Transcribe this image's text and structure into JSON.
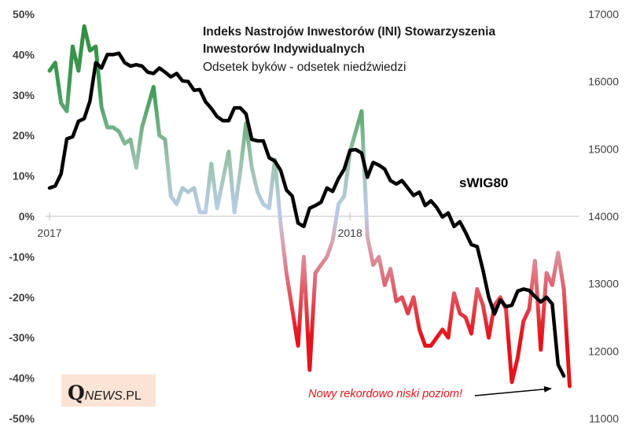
{
  "chart_data": {
    "type": "line",
    "title_line1": "Indeks Nastrojów Inwestorów (INI) Stowarzyszenia",
    "title_line2": "Inwestorów Indywidualnych",
    "subtitle": "Odsetek byków - odsetek niedźwiedzi",
    "left_axis": {
      "ylim": [
        -50,
        50
      ],
      "ticks": [
        50,
        40,
        30,
        20,
        10,
        0,
        -10,
        -20,
        -30,
        -40,
        -50
      ],
      "tick_labels": [
        "50%",
        "40%",
        "30%",
        "20%",
        "10%",
        "0%",
        "-10%",
        "-20%",
        "-30%",
        "-40%",
        "-50%"
      ]
    },
    "right_axis": {
      "ylim": [
        11000,
        17000
      ],
      "ticks": [
        17000,
        16000,
        15000,
        14000,
        13000,
        12000,
        11000
      ],
      "tick_labels": [
        "17000",
        "16000",
        "15000",
        "14000",
        "13000",
        "12000",
        "11000"
      ]
    },
    "x_labels": [
      {
        "label": "2017",
        "week": 0
      },
      {
        "label": "2018",
        "week": 52
      }
    ],
    "series": [
      {
        "name": "INI",
        "axis": "left",
        "colors": {
          "positive": "#2e8b3a",
          "neutral": "#b9cde8",
          "negative": "#e3141b"
        },
        "values": [
          36,
          38,
          28,
          26,
          42,
          36,
          47,
          41,
          42,
          27,
          22,
          22,
          21,
          18,
          19,
          12,
          22,
          27,
          32,
          20,
          19,
          5,
          3,
          7,
          6,
          7,
          1,
          1,
          13,
          2,
          9,
          16,
          1,
          11,
          23,
          12,
          6,
          3,
          2,
          14,
          -2,
          -14,
          -23,
          -32,
          -10,
          -38,
          -14,
          -12,
          -10,
          -6,
          3,
          5,
          16,
          21,
          26,
          -5,
          -12,
          -10,
          -17,
          -13,
          -21,
          -20,
          -24,
          -20,
          -28,
          -32,
          -32,
          -30,
          -28,
          -30,
          -19,
          -24,
          -25,
          -29,
          -18,
          -22,
          -30,
          -22,
          -20,
          -23,
          -41,
          -35,
          -26,
          -23,
          -11,
          -33,
          -14,
          -17,
          -9,
          -18,
          -42
        ]
      },
      {
        "name": "sWIG80",
        "axis": "right",
        "label": "sWIG80",
        "color": "#000000",
        "values": [
          14420,
          14450,
          14630,
          15150,
          15180,
          15410,
          15450,
          15710,
          16280,
          16200,
          16400,
          16400,
          16420,
          16280,
          16230,
          16250,
          16230,
          16140,
          16120,
          16200,
          16140,
          16070,
          16120,
          16010,
          16000,
          15870,
          15880,
          15700,
          15600,
          15480,
          15420,
          15420,
          15610,
          15610,
          15520,
          15140,
          15120,
          15120,
          14870,
          14820,
          14680,
          14390,
          14300,
          13900,
          13850,
          14120,
          14160,
          14210,
          14420,
          14370,
          14560,
          14700,
          14980,
          14990,
          14940,
          14580,
          14800,
          14760,
          14700,
          14530,
          14480,
          14530,
          14420,
          14310,
          14360,
          14160,
          14230,
          14130,
          13990,
          14050,
          13850,
          13920,
          13760,
          13580,
          13550,
          13200,
          12800,
          12550,
          12760,
          12660,
          12680,
          12890,
          12920,
          12900,
          12810,
          12730,
          12800,
          12700,
          11800,
          11630
        ]
      }
    ],
    "series_label": "sWIG80",
    "annotation": "Nowy rekordowo niski poziom!",
    "legend": "none",
    "grid": false
  },
  "logo": {
    "q": "Q",
    "news": "NEWS",
    "pl": ".PL"
  }
}
